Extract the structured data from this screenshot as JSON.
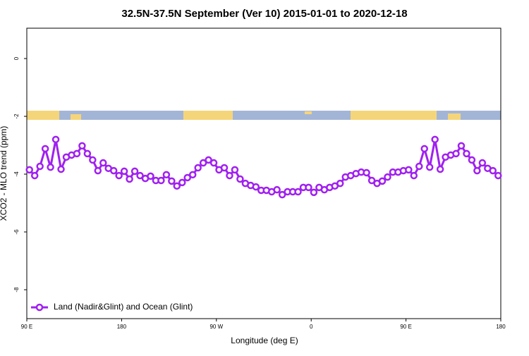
{
  "chart_data": {
    "type": "line",
    "title": "32.5N-37.5N September (Ver 10)   2015-01-01 to 2020-12-18",
    "x_label": "Longitude (deg E)",
    "y_label": "XCO2 - MLO trend (ppm)",
    "xlim": [
      90,
      540
    ],
    "ylim": [
      -9.0,
      1.05
    ],
    "xticks": [
      {
        "value": 90,
        "label": "90 E"
      },
      180,
      {
        "value": 270,
        "label": "90 W"
      },
      {
        "value": 360,
        "label": "0"
      },
      {
        "value": 450,
        "label": "90 E"
      },
      {
        "value": 540,
        "label": "180"
      }
    ],
    "yticks": [
      0,
      -2,
      -4,
      -6,
      -8
    ],
    "legend": "bottom-left",
    "x": [
      92.5,
      97.5,
      102.5,
      107.5,
      112.5,
      117.5,
      122.5,
      127.5,
      132.5,
      137.5,
      142.5,
      147.5,
      152.5,
      157.5,
      162.5,
      167.5,
      172.5,
      177.5,
      182.5,
      187.5,
      192.5,
      197.5,
      202.5,
      207.5,
      212.5,
      217.5,
      222.5,
      227.5,
      232.5,
      237.5,
      242.5,
      247.5,
      252.5,
      257.5,
      262.5,
      267.5,
      272.5,
      277.5,
      282.5,
      287.5,
      292.5,
      297.5,
      302.5,
      307.5,
      312.5,
      317.5,
      322.5,
      327.5,
      332.5,
      337.5,
      342.5,
      347.5,
      352.5,
      357.5,
      362.5,
      367.5,
      372.5,
      377.5,
      382.5,
      387.5,
      392.5,
      397.5,
      402.5,
      407.5,
      412.5,
      417.5,
      422.5,
      427.5,
      432.5,
      437.5,
      442.5,
      447.5,
      452.5,
      457.5,
      462.5,
      467.5,
      472.5,
      477.5,
      482.5,
      487.5,
      492.5,
      497.5,
      502.5,
      507.5,
      512.5,
      517.5,
      522.5,
      527.5,
      532.5,
      537.5
    ],
    "series": [
      {
        "name": "Land (Nadir&Glint) and Ocean (Glint)",
        "color": "#a020f0",
        "values": [
          -3.85,
          -4.05,
          -3.73,
          -3.12,
          -3.76,
          -2.8,
          -3.83,
          -3.41,
          -3.34,
          -3.29,
          -3.02,
          -3.29,
          -3.51,
          -3.88,
          -3.61,
          -3.8,
          -3.88,
          -4.05,
          -3.9,
          -4.17,
          -3.9,
          -4.05,
          -4.15,
          -4.07,
          -4.22,
          -4.22,
          -4.02,
          -4.24,
          -4.41,
          -4.29,
          -4.12,
          -4.02,
          -3.78,
          -3.61,
          -3.51,
          -3.61,
          -3.85,
          -3.78,
          -4.05,
          -3.85,
          -4.17,
          -4.32,
          -4.39,
          -4.44,
          -4.56,
          -4.56,
          -4.61,
          -4.54,
          -4.71,
          -4.61,
          -4.61,
          -4.61,
          -4.46,
          -4.46,
          -4.63,
          -4.46,
          -4.54,
          -4.46,
          -4.41,
          -4.32,
          -4.1,
          -4.05,
          -3.98,
          -3.93,
          -3.95,
          -4.22,
          -4.32,
          -4.24,
          -4.1,
          -3.93,
          -3.93,
          -3.88,
          -3.85,
          -4.05,
          -3.73,
          -3.12,
          -3.76,
          -2.8,
          -3.83,
          -3.41,
          -3.34,
          -3.29,
          -3.02,
          -3.29,
          -3.51,
          -3.88,
          -3.61,
          -3.8,
          -3.88,
          -4.05
        ]
      }
    ]
  }
}
